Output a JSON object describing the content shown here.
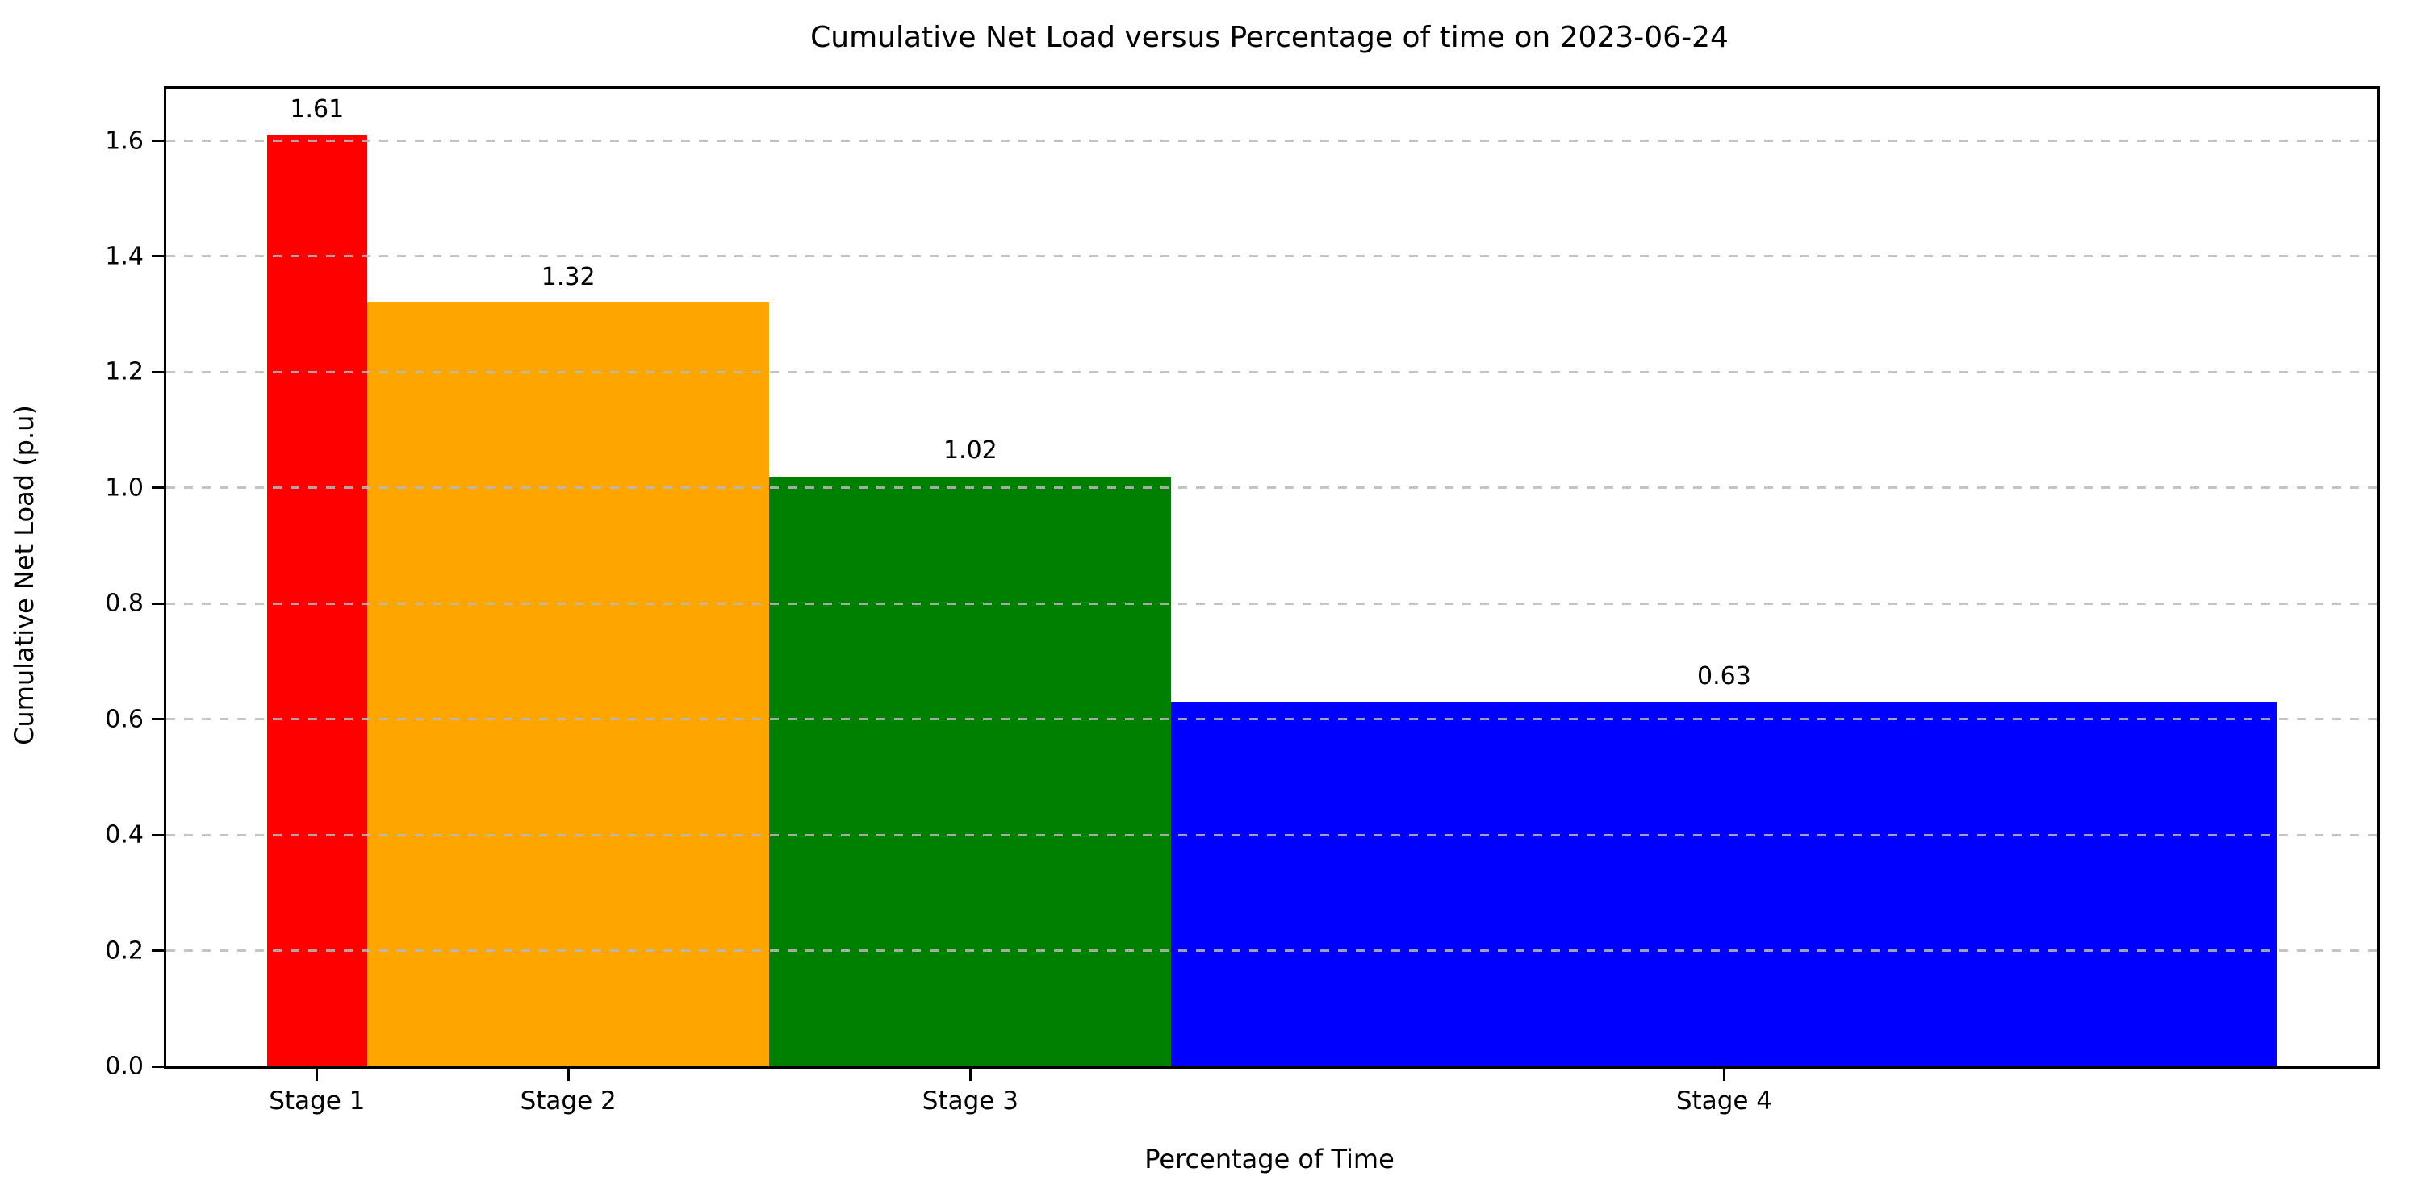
{
  "figure": {
    "title": "Cumulative Net Load versus Percentage of time on 2023-06-24",
    "xlabel": "Percentage of Time",
    "ylabel": "Cumulative Net Load (p.u)"
  },
  "chart_data": {
    "type": "bar",
    "title": "Cumulative Net Load versus Percentage of time on 2023-06-24",
    "xlabel": "Percentage of Time",
    "ylabel": "Cumulative Net Load (p.u)",
    "categories": [
      "Stage 1",
      "Stage 2",
      "Stage 3",
      "Stage 4"
    ],
    "values": [
      1.61,
      1.32,
      1.02,
      0.63
    ],
    "value_labels": [
      "1.61",
      "1.32",
      "1.02",
      "0.63"
    ],
    "bar_colors": [
      "#ff0000",
      "#ffa500",
      "#008000",
      "#0000ff"
    ],
    "bar_width_percent": [
      5,
      20,
      20,
      55
    ],
    "x_range_percent": [
      0,
      100
    ],
    "x_margin_fraction": 0.05,
    "ylim": [
      0,
      1.69
    ],
    "yticks": [
      0.0,
      0.2,
      0.4,
      0.6,
      0.8,
      1.0,
      1.2,
      1.4,
      1.6
    ],
    "ytick_labels": [
      "0.0",
      "0.2",
      "0.4",
      "0.6",
      "0.8",
      "1.0",
      "1.2",
      "1.4",
      "1.6"
    ],
    "grid": "horizontal dashed, drawn above bars",
    "grid_color": "#b9b9b9",
    "legend": "none"
  }
}
